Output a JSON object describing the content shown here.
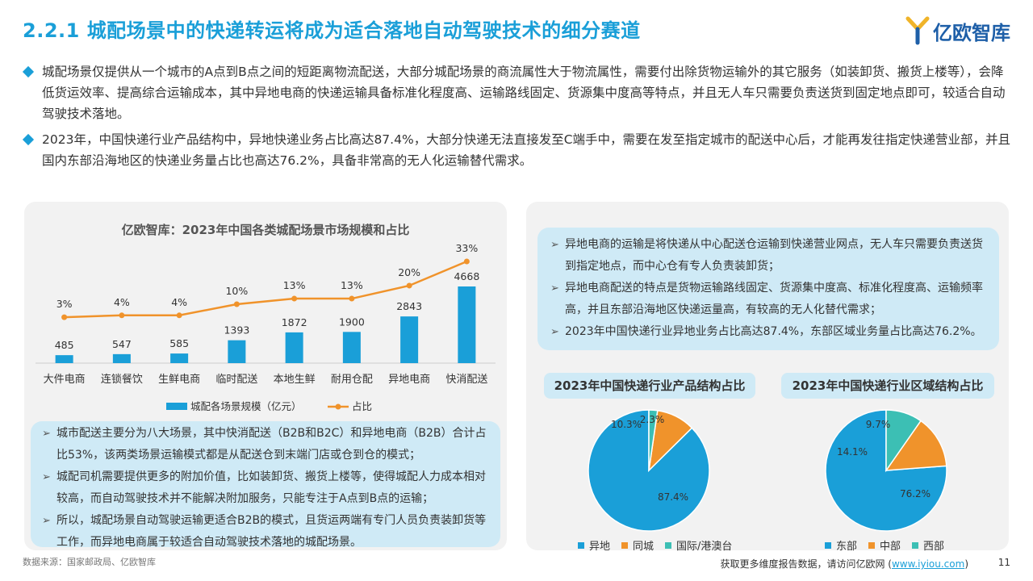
{
  "header": {
    "title": "2.2.1 城配场景中的快递转运将成为适合落地自动驾驶技术的细分赛道",
    "logo_text": "亿欧智库"
  },
  "intro": [
    "城配场景仅提供从一个城市的A点到B点之间的短距离物流配送，大部分城配场景的商流属性大于物流属性，需要付出除货物运输外的其它服务（如装卸货、搬货上楼等），会降低货运效率、提高综合运输成本，其中异地电商的快递运输具备标准化程度高、运输路线固定、货源集中度高等特点，并且无人车只需要负责送货到固定地点即可，较适合自动驾驶技术落地。",
    "2023年，中国快递行业产品结构中，异地快递业务占比高达87.4%，大部分快递无法直接发至C端手中，需要在发至指定城市的配送中心后，才能再发往指定快递营业部，并且国内东部沿海地区的快递业务量占比也高达76.2%，具备非常高的无人化运输替代需求。"
  ],
  "left_notes": [
    "城市配送主要分为八大场景，其中快消配送（B2B和B2C）和异地电商（B2B）合计占比53%，该两类场景运输模式都是从配送仓到末端门店或仓到仓的模式；",
    "城配司机需要提供更多的附加价值，比如装卸货、搬货上楼等，使得城配人力成本相对较高，而自动驾驶技术并不能解决附加服务，只能专注于A点到B点的运输；",
    "所以，城配场景自动驾驶运输更适合B2B的模式，且货运两端有专门人员负责装卸货等工作，而异地电商属于较适合自动驾驶技术落地的城配场景。"
  ],
  "right_notes": [
    "异地电商的运输是将快递从中心配送仓运输到快递营业网点，无人车只需要负责送货到指定地点，而中心仓有专人负责装卸货；",
    "异地电商配送的特点是货物运输路线固定、货源集中度高、标准化程度高、运输频率高，并且东部沿海地区快递运量高，有较高的无人化替代需求；",
    "2023年中国快递行业异地业务占比高达87.4%，东部区域业务量占比高达76.2%。"
  ],
  "chart_data": [
    {
      "type": "bar",
      "title": "亿欧智库：2023年中国各类城配场景市场规模和占比",
      "categories": [
        "大件电商",
        "连锁餐饮",
        "生鲜电商",
        "临时配送",
        "本地生鲜",
        "耐用仓配",
        "异地电商",
        "快消配送"
      ],
      "series": [
        {
          "name": "城配各场景规模（亿元）",
          "kind": "bar",
          "values": [
            485,
            547,
            585,
            1393,
            1872,
            1900,
            2843,
            4668
          ],
          "color": "#1a9fd8"
        },
        {
          "name": "占比",
          "kind": "line",
          "values": [
            3,
            4,
            4,
            10,
            13,
            13,
            20,
            33
          ],
          "labels": [
            "3%",
            "4%",
            "4%",
            "10%",
            "13%",
            "13%",
            "20%",
            "33%"
          ],
          "color": "#f0932b"
        }
      ],
      "legend_position": "bottom",
      "grid": false
    },
    {
      "type": "pie",
      "title": "2023年中国快递行业产品结构占比",
      "labels": [
        "异地",
        "同城",
        "国际/港澳台"
      ],
      "values": [
        87.4,
        10.3,
        2.3
      ],
      "value_labels": [
        "87.4%",
        "10.3%",
        "2.3%"
      ],
      "colors": [
        "#1a9fd8",
        "#f0932b",
        "#3cbfb4"
      ],
      "legend_position": "bottom"
    },
    {
      "type": "pie",
      "title": "2023年中国快递行业区域结构占比",
      "labels": [
        "东部",
        "中部",
        "西部"
      ],
      "values": [
        76.2,
        14.1,
        9.7
      ],
      "value_labels": [
        "76.2%",
        "14.1%",
        "9.7%"
      ],
      "colors": [
        "#1a9fd8",
        "#f0932b",
        "#3cbfb4"
      ],
      "legend_position": "bottom"
    }
  ],
  "footer": {
    "source": "数据来源：国家邮政局、亿欧智库",
    "more_prefix": "获取更多维度报告数据，请访问亿欧网 (",
    "more_link": "www.iyiou.com",
    "more_suffix": ")",
    "page": "11"
  }
}
